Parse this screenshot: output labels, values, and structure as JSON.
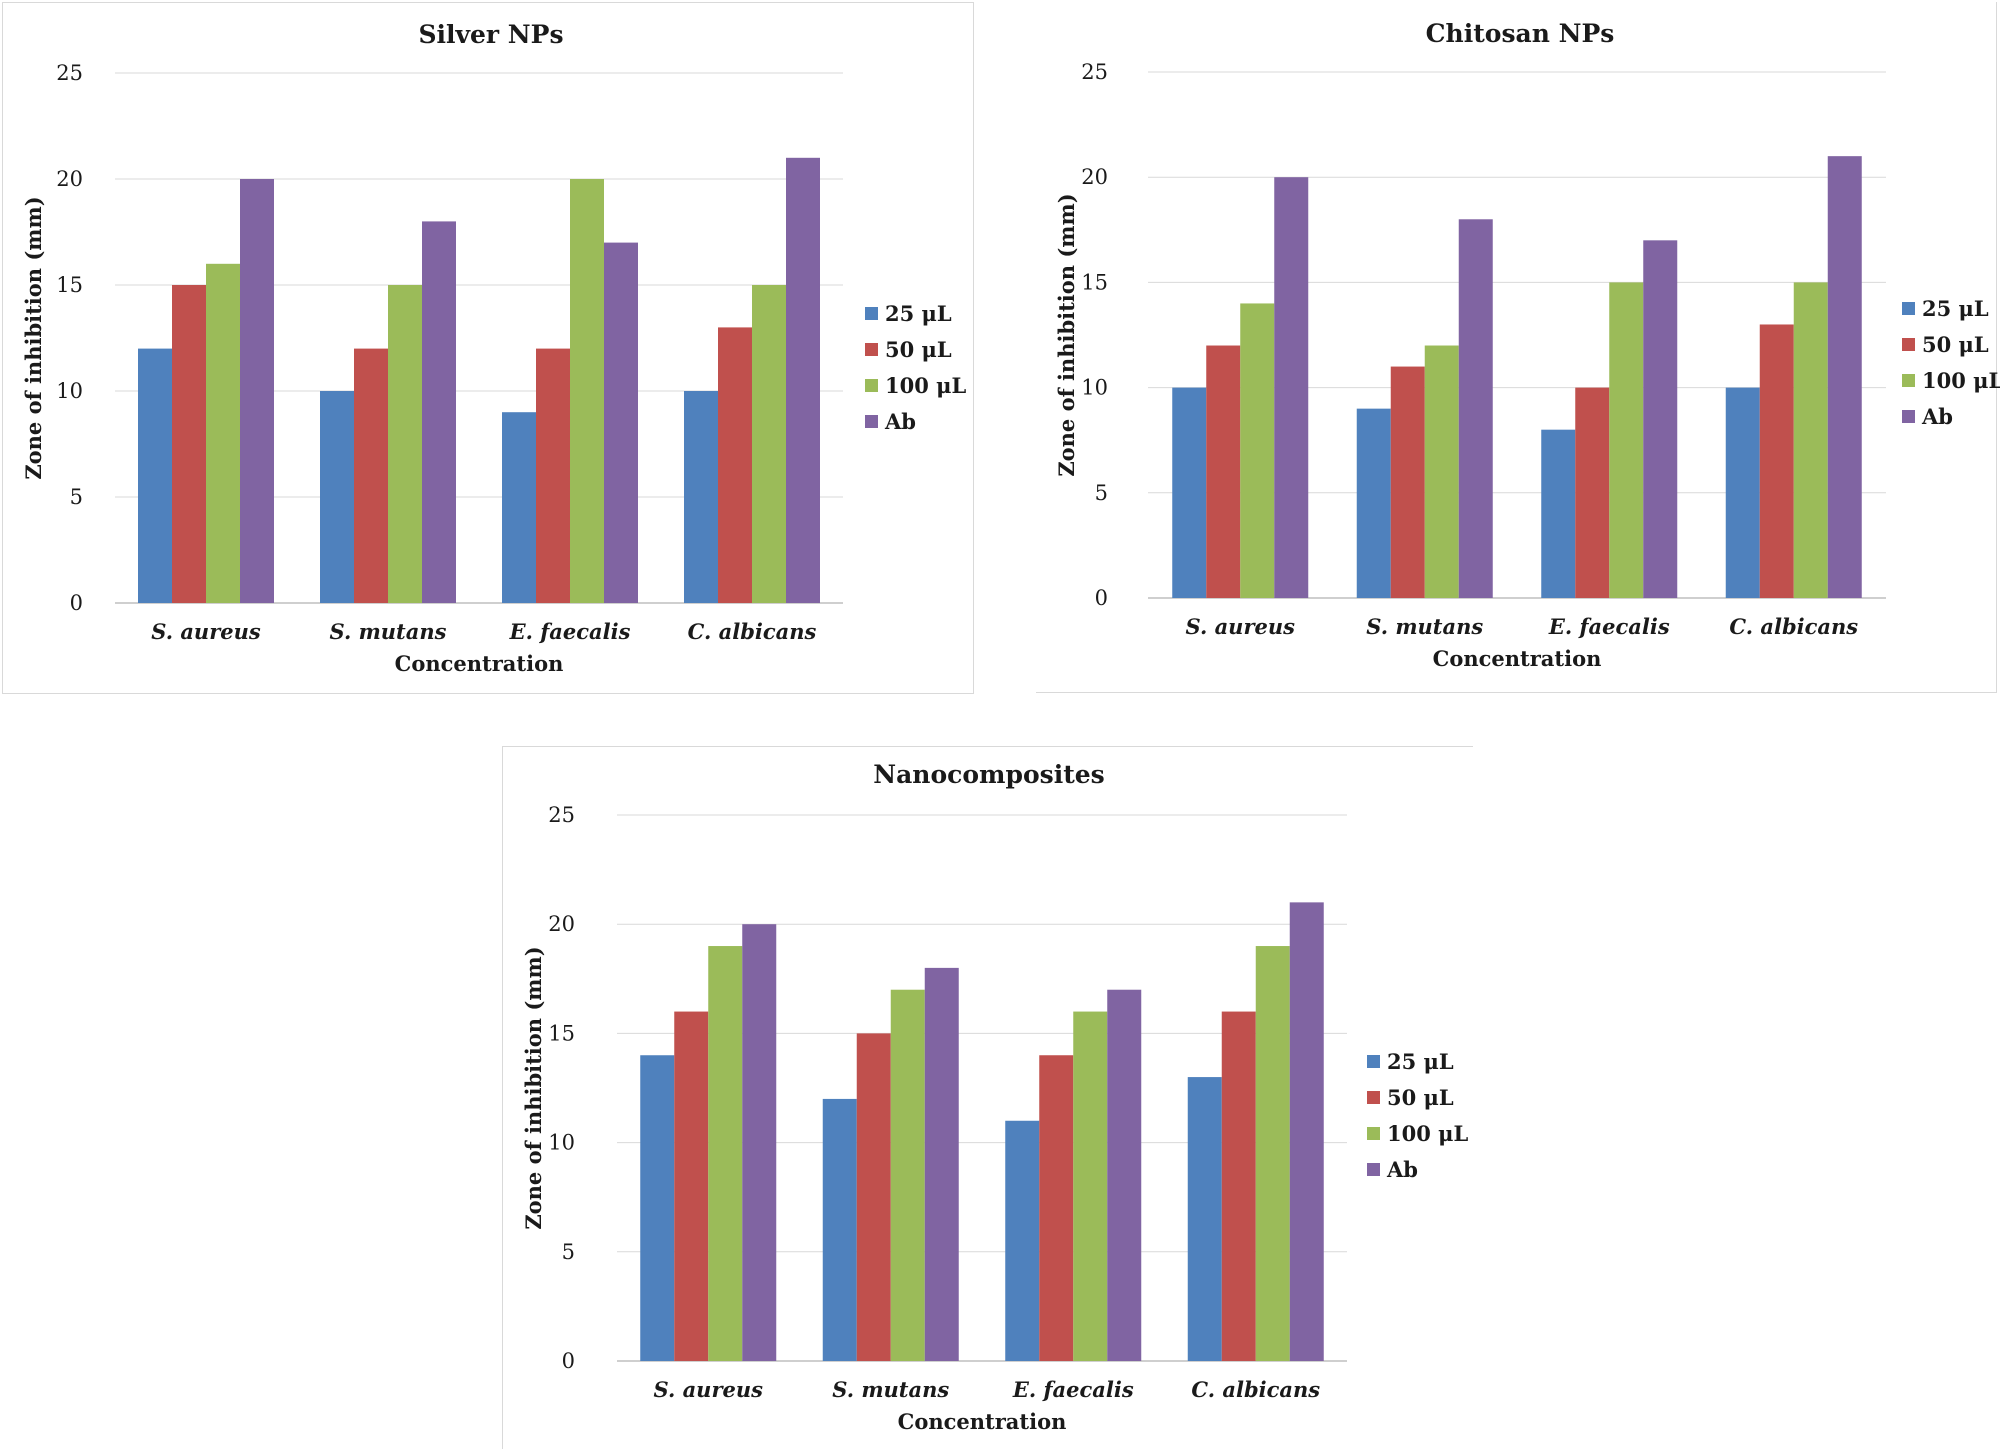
{
  "chart_data": [
    {
      "type": "bar",
      "title": "Silver NPs",
      "xlabel": "Concentration",
      "ylabel": "Zone of inhibition (mm)",
      "categories": [
        "S. aureus",
        "S. mutans",
        "E. faecalis",
        "C. albicans"
      ],
      "ylim": [
        0,
        25
      ],
      "yticks": [
        0,
        5,
        10,
        15,
        20,
        25
      ],
      "grid": true,
      "legend": "right",
      "series": [
        {
          "name": "25 μL",
          "color": "#4f81bd",
          "values": [
            12,
            10,
            9,
            10
          ]
        },
        {
          "name": "50 μL",
          "color": "#c0504d",
          "values": [
            15,
            12,
            12,
            13
          ]
        },
        {
          "name": "100 μL",
          "color": "#9bbb59",
          "values": [
            16,
            15,
            20,
            15
          ]
        },
        {
          "name": "Ab",
          "color": "#8064a2",
          "values": [
            20,
            18,
            17,
            21
          ]
        }
      ]
    },
    {
      "type": "bar",
      "title": "Chitosan NPs",
      "xlabel": "Concentration",
      "ylabel": "Zone of inhibition (mm)",
      "categories": [
        "S. aureus",
        "S. mutans",
        "E. faecalis",
        "C. albicans"
      ],
      "ylim": [
        0,
        25
      ],
      "yticks": [
        0,
        5,
        10,
        15,
        20,
        25
      ],
      "grid": true,
      "legend": "right",
      "series": [
        {
          "name": "25 μL",
          "color": "#4f81bd",
          "values": [
            10,
            9,
            8,
            10
          ]
        },
        {
          "name": "50 μL",
          "color": "#c0504d",
          "values": [
            12,
            11,
            10,
            13
          ]
        },
        {
          "name": "100 μL",
          "color": "#9bbb59",
          "values": [
            14,
            12,
            15,
            15
          ]
        },
        {
          "name": "Ab",
          "color": "#8064a2",
          "values": [
            20,
            18,
            17,
            21
          ]
        }
      ]
    },
    {
      "type": "bar",
      "title": "Nanocomposites",
      "xlabel": "Concentration",
      "ylabel": "Zone of inhibition (mm)",
      "categories": [
        "S. aureus",
        "S. mutans",
        "E. faecalis",
        "C. albicans"
      ],
      "ylim": [
        0,
        25
      ],
      "yticks": [
        0,
        5,
        10,
        15,
        20,
        25
      ],
      "grid": true,
      "legend": "right",
      "series": [
        {
          "name": "25 μL",
          "color": "#4f81bd",
          "values": [
            14,
            12,
            11,
            13
          ]
        },
        {
          "name": "50 μL",
          "color": "#c0504d",
          "values": [
            16,
            15,
            14,
            16
          ]
        },
        {
          "name": "100 μL",
          "color": "#9bbb59",
          "values": [
            19,
            17,
            16,
            19
          ]
        },
        {
          "name": "Ab",
          "color": "#8064a2",
          "values": [
            20,
            18,
            17,
            21
          ]
        }
      ]
    }
  ]
}
